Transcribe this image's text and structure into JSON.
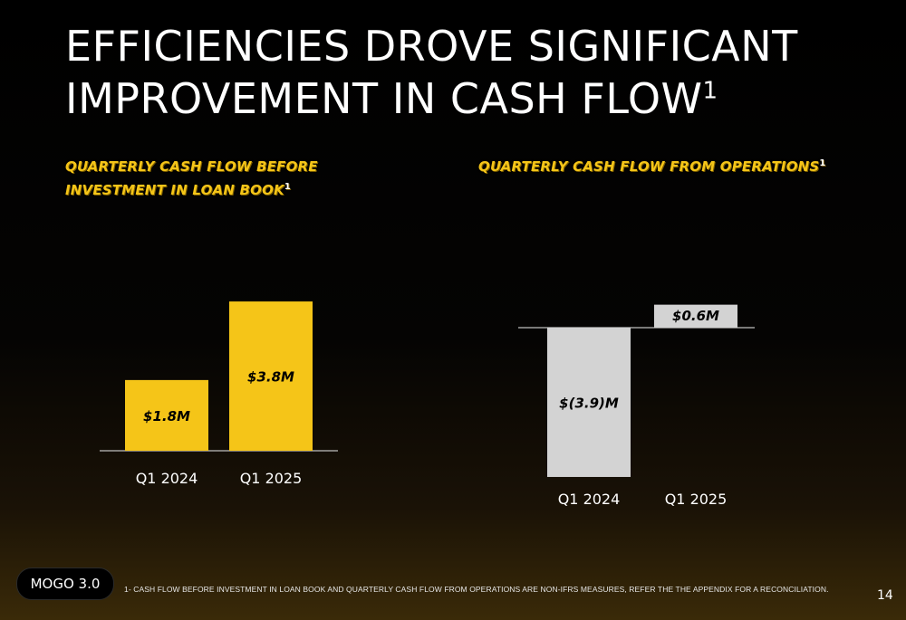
{
  "slide": {
    "title": "EFFICIENCIES DROVE SIGNIFICANT IMPROVEMENT IN CASH FLOW",
    "title_footnote_mark": "1",
    "brand": "MOGO 3.0",
    "footnote": "1- CASH FLOW BEFORE INVESTMENT IN LOAN BOOK AND QUARTERLY CASH FLOW FROM OPERATIONS ARE NON-IFRS MEASURES, REFER THE THE APPENDIX FOR A RECONCILIATION.",
    "page_number": "14"
  },
  "colors": {
    "accent_yellow": "#f5c518",
    "bar_gray": "#d3d3d3",
    "background": "#000000"
  },
  "chart_data": [
    {
      "type": "bar",
      "title": "QUARTERLY CASH FLOW BEFORE INVESTMENT IN LOAN BOOK",
      "title_footnote_mark": "1",
      "categories": [
        "Q1 2024",
        "Q1 2025"
      ],
      "values": [
        1.8,
        3.8
      ],
      "labels": [
        "$1.8M",
        "$3.8M"
      ],
      "unit": "$M",
      "bar_color": "#f5c518",
      "label_color": "#000000",
      "grid": false
    },
    {
      "type": "bar",
      "title": "QUARTERLY CASH FLOW FROM OPERATIONS",
      "title_footnote_mark": "1",
      "categories": [
        "Q1 2024",
        "Q1 2025"
      ],
      "values": [
        -3.9,
        0.6
      ],
      "labels": [
        "$(3.9)M",
        "$0.6M"
      ],
      "unit": "$M",
      "bar_color": "#d3d3d3",
      "label_color": "#000000",
      "grid": false
    }
  ]
}
